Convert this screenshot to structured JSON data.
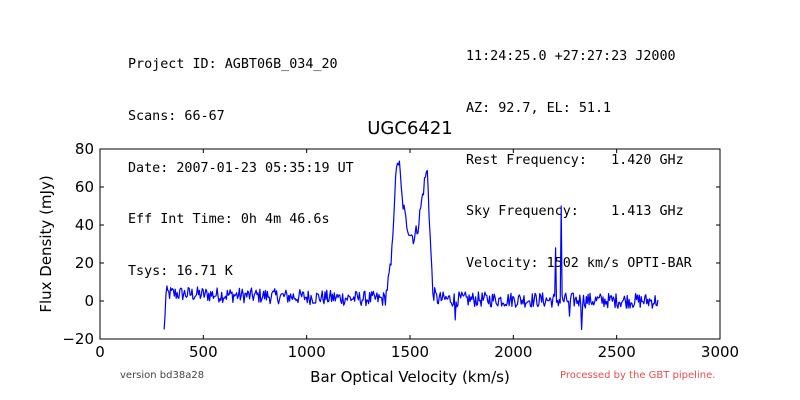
{
  "header_left": [
    "Project ID: AGBT06B_034_20",
    "Scans: 66-67",
    "Date: 2007-01-23 05:35:19 UT",
    "Eff Int Time: 0h 4m 46.6s",
    "Tsys: 16.71 K"
  ],
  "header_right": [
    "11:24:25.0 +27:27:23 J2000",
    "AZ: 92.7, EL: 51.1",
    "Rest Frequency:   1.420 GHz",
    "Sky Frequency:    1.413 GHz",
    "Velocity: 1502 km/s OPTI-BAR"
  ],
  "footer": {
    "version": "version bd38a28",
    "pipeline": "Processed by the GBT pipeline."
  },
  "colors": {
    "line": "#0000ff",
    "pipeline_text": "#e84c4c"
  },
  "chart_data": {
    "type": "line",
    "title": "UGC6421",
    "xlabel": "Bar Optical Velocity (km/s)",
    "ylabel": "Flux Density (mJy)",
    "xlim": [
      0,
      3000
    ],
    "ylim": [
      -20,
      80
    ],
    "xticks": [
      "0",
      "500",
      "1000",
      "1500",
      "2000",
      "2500",
      "3000"
    ],
    "yticks": [
      "−20",
      "0",
      "20",
      "40",
      "60",
      "80"
    ],
    "x_range_data": [
      310,
      2700
    ],
    "noise_level": 4,
    "series": [
      {
        "profile": [
          [
            310,
            -15
          ],
          [
            320,
            4
          ],
          [
            1380,
            1
          ],
          [
            1410,
            20
          ],
          [
            1425,
            55
          ],
          [
            1440,
            75
          ],
          [
            1450,
            70
          ],
          [
            1460,
            55
          ],
          [
            1480,
            42
          ],
          [
            1500,
            36
          ],
          [
            1520,
            33
          ],
          [
            1540,
            40
          ],
          [
            1560,
            55
          ],
          [
            1575,
            66
          ],
          [
            1585,
            68
          ],
          [
            1595,
            40
          ],
          [
            1610,
            5
          ],
          [
            1630,
            1
          ],
          [
            2700,
            0
          ]
        ],
        "spikes": [
          [
            2205,
            28
          ],
          [
            2230,
            50
          ],
          [
            2330,
            -15
          ],
          [
            2270,
            -8
          ],
          [
            1720,
            -10
          ]
        ]
      }
    ]
  }
}
